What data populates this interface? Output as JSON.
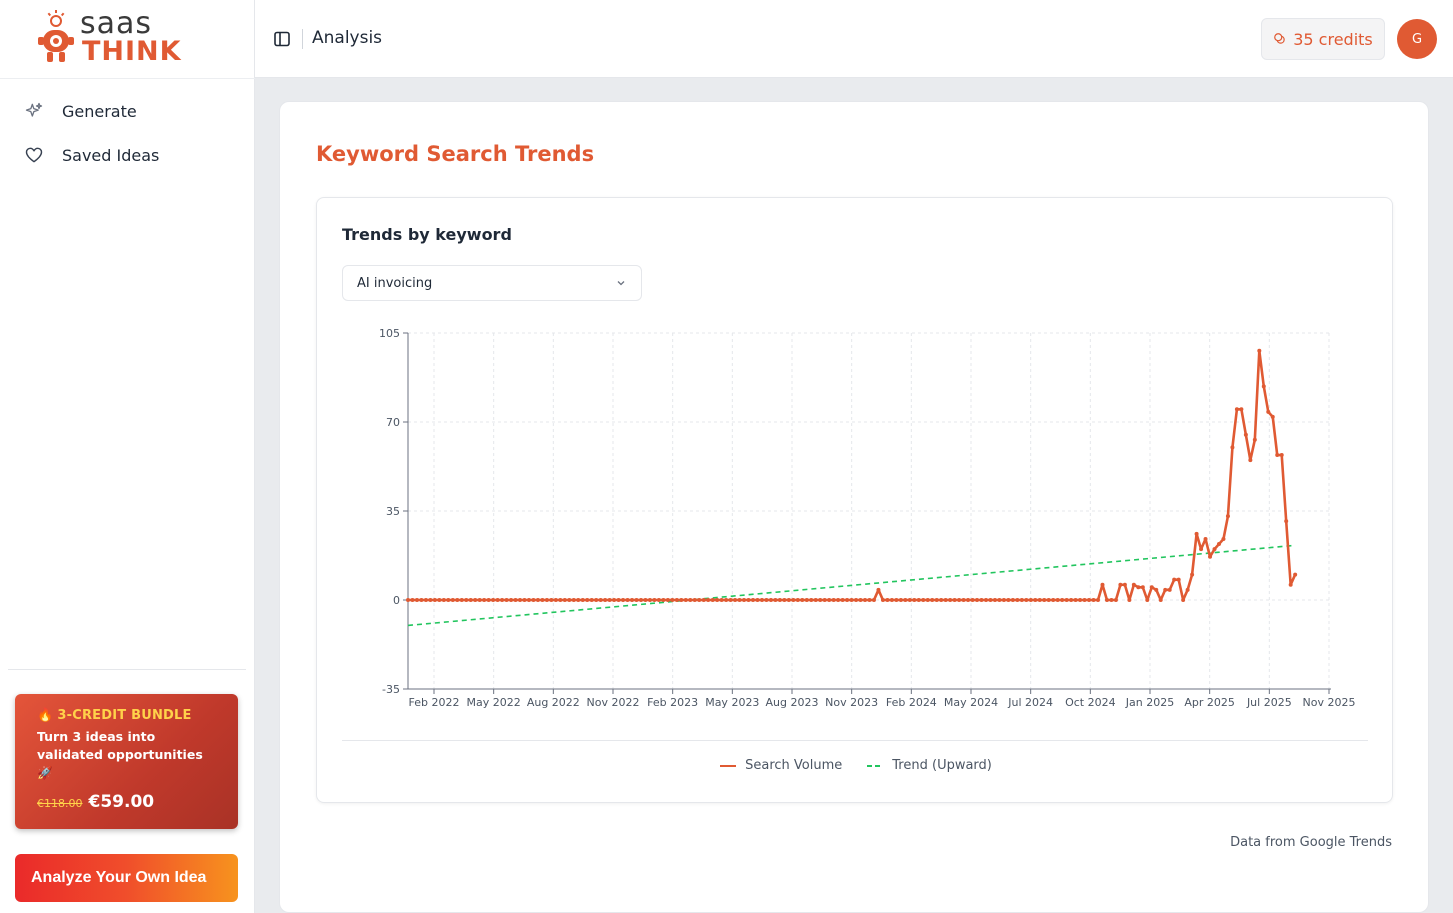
{
  "brand": {
    "name_top": "saas",
    "name_bottom": "THINK",
    "accent": "#e05a33"
  },
  "sidebar": {
    "items": [
      {
        "label": "Generate",
        "icon": "sparkles-icon"
      },
      {
        "label": "Saved Ideas",
        "icon": "heart-icon"
      }
    ],
    "promo": {
      "tag": "3-CREDIT BUNDLE",
      "subtitle": "Turn 3 ideas into validated opportunities",
      "old_price": "€118.00",
      "new_price": "€59.00"
    },
    "cta_label": "Analyze Your Own Idea"
  },
  "header": {
    "title": "Analysis",
    "credits": "35 credits",
    "avatar_initial": "G"
  },
  "main": {
    "section_title": "Keyword Search Trends",
    "chart_title": "Trends by keyword",
    "keyword_selected": "AI invoicing",
    "footnote": "Data from Google Trends"
  },
  "chart_data": {
    "type": "line",
    "title": "",
    "xlabel": "",
    "ylabel": "",
    "ylim": [
      -35,
      105
    ],
    "yticks": [
      105,
      70,
      35,
      0,
      -35
    ],
    "x_tick_labels": [
      "Feb 2022",
      "May 2022",
      "Aug 2022",
      "Nov 2022",
      "Feb 2023",
      "May 2023",
      "Aug 2023",
      "Nov 2023",
      "Feb 2024",
      "May 2024",
      "Jul 2024",
      "Oct 2024",
      "Jan 2025",
      "Apr 2025",
      "Jul 2025",
      "Nov 2025"
    ],
    "grid": true,
    "legend_position": "bottom",
    "x_range": [
      "2022-01-02",
      "2025-12-14"
    ],
    "series": [
      {
        "name": "Search Volume",
        "color": "#e05a33",
        "style": "solid",
        "points": [
          [
            "2022-01-02",
            0
          ],
          [
            "2023-12-31",
            0
          ],
          [
            "2024-01-07",
            4
          ],
          [
            "2024-01-14",
            0
          ],
          [
            "2024-12-15",
            0
          ],
          [
            "2024-12-22",
            6
          ],
          [
            "2024-12-29",
            0
          ],
          [
            "2025-01-12",
            0
          ],
          [
            "2025-01-19",
            6
          ],
          [
            "2025-01-26",
            6
          ],
          [
            "2025-02-02",
            0
          ],
          [
            "2025-02-09",
            6
          ],
          [
            "2025-02-16",
            5
          ],
          [
            "2025-02-23",
            5
          ],
          [
            "2025-03-02",
            0
          ],
          [
            "2025-03-09",
            5
          ],
          [
            "2025-03-16",
            4
          ],
          [
            "2025-03-23",
            0
          ],
          [
            "2025-03-30",
            4
          ],
          [
            "2025-04-06",
            4
          ],
          [
            "2025-04-13",
            8
          ],
          [
            "2025-04-20",
            8
          ],
          [
            "2025-04-27",
            0
          ],
          [
            "2025-05-04",
            4
          ],
          [
            "2025-05-11",
            10
          ],
          [
            "2025-05-18",
            26
          ],
          [
            "2025-05-25",
            20
          ],
          [
            "2025-06-01",
            24
          ],
          [
            "2025-06-08",
            17
          ],
          [
            "2025-06-15",
            20
          ],
          [
            "2025-06-22",
            22
          ],
          [
            "2025-06-29",
            24
          ],
          [
            "2025-07-06",
            33
          ],
          [
            "2025-07-13",
            60
          ],
          [
            "2025-07-20",
            75
          ],
          [
            "2025-07-27",
            75
          ],
          [
            "2025-08-03",
            65
          ],
          [
            "2025-08-10",
            55
          ],
          [
            "2025-08-17",
            63
          ],
          [
            "2025-08-24",
            98
          ],
          [
            "2025-08-31",
            84
          ],
          [
            "2025-09-07",
            74
          ],
          [
            "2025-09-14",
            72
          ],
          [
            "2025-09-21",
            57
          ],
          [
            "2025-09-28",
            57
          ],
          [
            "2025-10-05",
            31
          ],
          [
            "2025-10-12",
            6
          ],
          [
            "2025-10-19",
            10
          ]
        ]
      },
      {
        "name": "Trend (Upward)",
        "color": "#22c55e",
        "style": "dashed",
        "points": [
          [
            "2022-01-02",
            -10
          ],
          [
            "2025-10-19",
            21.5
          ]
        ]
      }
    ]
  }
}
